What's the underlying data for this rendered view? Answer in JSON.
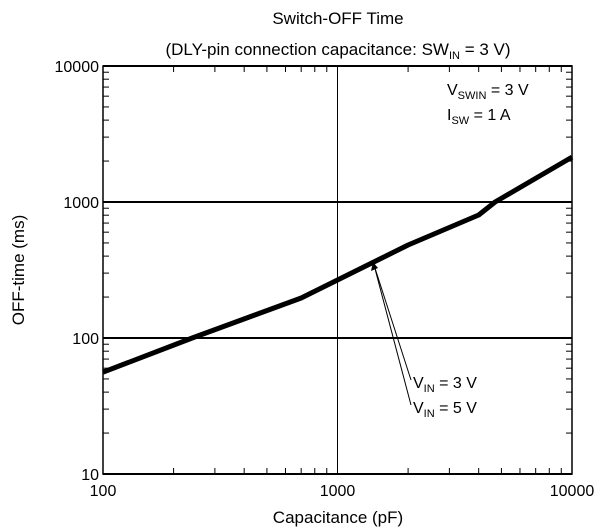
{
  "chart_data": {
    "type": "line",
    "title": "Switch-OFF Time",
    "subtitle": {
      "main": "(DLY-pin connection capacitance: SW",
      "sub": "IN",
      "rest": " = 3 V)"
    },
    "x_label": "Capacitance (pF)",
    "y_label": "OFF-time (ms)",
    "x": [
      100,
      240,
      700,
      1000,
      2000,
      4000,
      4700,
      10000
    ],
    "series": [
      {
        "color": "#000000",
        "values": [
          56,
          100,
          197,
          267,
          483,
          802,
          1000,
          2140
        ]
      }
    ],
    "xlim": [
      100,
      10000
    ],
    "ylim": [
      10,
      10000
    ],
    "xticks": [
      100,
      1000,
      10000
    ],
    "yticks": [
      10,
      100,
      1000,
      10000
    ],
    "xminor_ticks": [
      200,
      300,
      400,
      500,
      600,
      700,
      800,
      900,
      2000,
      3000,
      4000,
      5000,
      6000,
      7000,
      8000,
      9000
    ],
    "yminor_ticks": [
      20,
      30,
      40,
      50,
      60,
      70,
      80,
      90,
      200,
      300,
      400,
      500,
      600,
      700,
      800,
      900,
      2000,
      3000,
      4000,
      5000,
      6000,
      7000,
      8000,
      9000
    ],
    "log_x": true,
    "log_y": true,
    "grid": true,
    "conditions": [
      {
        "main": "V",
        "sub": "SWIN",
        "rest": " = 3 V"
      },
      {
        "main": "I",
        "sub": "SW",
        "rest": " = 1 A"
      }
    ],
    "annotations": [
      {
        "main": "V",
        "sub": "IN",
        "rest": " = 3 V"
      },
      {
        "main": "V",
        "sub": "IN",
        "rest": " = 5 V"
      }
    ]
  }
}
